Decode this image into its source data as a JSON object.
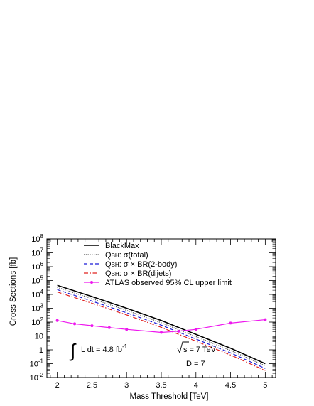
{
  "chart_data": {
    "type": "line",
    "xlabel": "Mass Threshold [TeV]",
    "ylabel": "Cross Sections [fb]",
    "xlim": [
      1.85,
      5.15
    ],
    "ylim_log10": [
      -2,
      8
    ],
    "x_ticks": [
      "2",
      "2.5",
      "3",
      "3.5",
      "4",
      "4.5",
      "5"
    ],
    "y_ticks": [
      {
        "exp": -2,
        "base": "10",
        "sup": "-2"
      },
      {
        "exp": -1,
        "base": "10",
        "sup": "-1"
      },
      {
        "exp": 0,
        "base": "1",
        "sup": ""
      },
      {
        "exp": 1,
        "base": "10",
        "sup": ""
      },
      {
        "exp": 2,
        "base": "10",
        "sup": "2"
      },
      {
        "exp": 3,
        "base": "10",
        "sup": "3"
      },
      {
        "exp": 4,
        "base": "10",
        "sup": "4"
      },
      {
        "exp": 5,
        "base": "10",
        "sup": "5"
      },
      {
        "exp": 6,
        "base": "10",
        "sup": "6"
      },
      {
        "exp": 7,
        "base": "10",
        "sup": "7"
      },
      {
        "exp": 8,
        "base": "10",
        "sup": "8"
      }
    ],
    "series": [
      {
        "name": "BlackMax",
        "color": "#000000",
        "style": "solid",
        "x": [
          2,
          2.5,
          3,
          3.5,
          4,
          4.5,
          5
        ],
        "y": [
          45000,
          7000,
          1000,
          130,
          13,
          1.3,
          0.1
        ]
      },
      {
        "name": "QBH: σ(total)",
        "legend_prefix": "Q",
        "legend_sub": "BH",
        "legend_rest": ": σ(total)",
        "color": "#555555",
        "style": "dotted",
        "x": [
          2,
          2.5,
          3,
          3.5,
          4,
          4.5,
          5
        ],
        "y": [
          32000,
          5000,
          700,
          90,
          9,
          0.9,
          0.07
        ]
      },
      {
        "name": "QBH: σ × BR(2-body)",
        "legend_prefix": "Q",
        "legend_sub": "BH",
        "legend_rest": ": σ × BR(2-body)",
        "color": "#1a1ad6",
        "style": "dashed",
        "x": [
          2,
          2.5,
          3,
          3.5,
          4,
          4.5,
          5
        ],
        "y": [
          22000,
          3300,
          470,
          60,
          6,
          0.6,
          0.045
        ]
      },
      {
        "name": "QBH: σ × BR(dijets)",
        "legend_prefix": "Q",
        "legend_sub": "BH",
        "legend_rest": ": σ × BR(dijets)",
        "color": "#e0201e",
        "style": "dashdot",
        "x": [
          2,
          2.5,
          3,
          3.5,
          4,
          4.5,
          5
        ],
        "y": [
          15000,
          2300,
          330,
          42,
          4.2,
          0.42,
          0.032
        ]
      },
      {
        "name": "ATLAS observed 95% CL upper limit",
        "color": "#ee17ee",
        "style": "solid-markers",
        "x": [
          2,
          2.25,
          2.5,
          2.75,
          3,
          3.5,
          3.75,
          4,
          4.5,
          5
        ],
        "y": [
          130,
          75,
          55,
          40,
          30,
          18,
          22,
          30,
          85,
          150
        ]
      }
    ],
    "legend_position": "top-left",
    "annotations": {
      "integral_sign": "∫",
      "lumi_pre": "L dt = 4.8 fb",
      "lumi_sup": "-1",
      "sqrt_s": "s = 7 TeV",
      "dims": "D = 7"
    }
  }
}
